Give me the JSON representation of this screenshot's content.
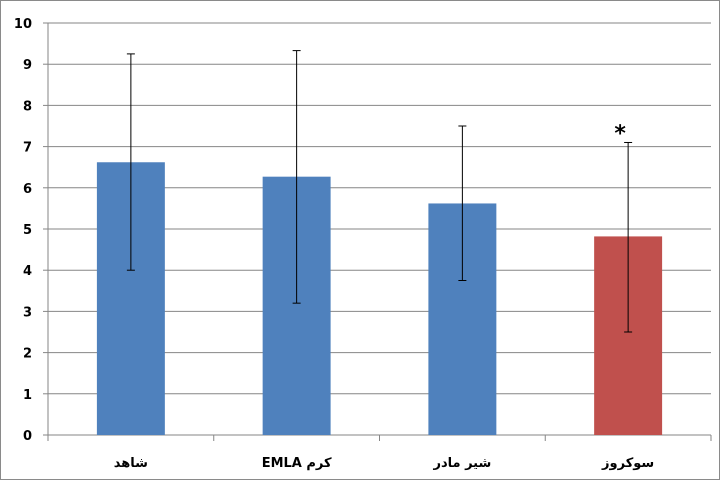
{
  "chart_data": {
    "type": "bar",
    "title": "",
    "xlabel": "",
    "ylabel": "",
    "ylim": [
      0,
      10
    ],
    "yticks": [
      0,
      1,
      2,
      3,
      4,
      5,
      6,
      7,
      8,
      9,
      10
    ],
    "grid": true,
    "legend": "none",
    "categories": [
      "شاهد",
      "کرم EMLA",
      "شیر مادر",
      "سوکروز"
    ],
    "values": [
      6.62,
      6.27,
      5.62,
      4.82
    ],
    "error_low": [
      4.0,
      3.2,
      3.75,
      2.5
    ],
    "error_high": [
      9.25,
      9.33,
      7.5,
      7.1
    ],
    "colors": [
      "#4f81bd",
      "#4f81bd",
      "#4f81bd",
      "#c0504d"
    ],
    "annotations": [
      {
        "category": "سوکروز",
        "text": "*"
      }
    ]
  }
}
